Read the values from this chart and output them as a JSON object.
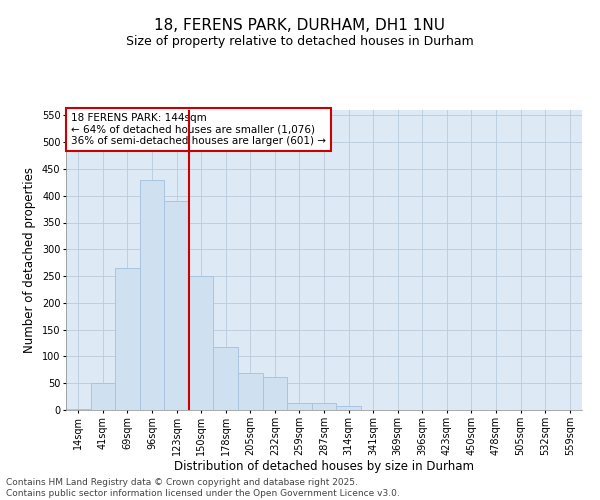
{
  "title": "18, FERENS PARK, DURHAM, DH1 1NU",
  "subtitle": "Size of property relative to detached houses in Durham",
  "xlabel": "Distribution of detached houses by size in Durham",
  "ylabel": "Number of detached properties",
  "categories": [
    "14sqm",
    "41sqm",
    "69sqm",
    "96sqm",
    "123sqm",
    "150sqm",
    "178sqm",
    "205sqm",
    "232sqm",
    "259sqm",
    "287sqm",
    "314sqm",
    "341sqm",
    "369sqm",
    "396sqm",
    "423sqm",
    "450sqm",
    "478sqm",
    "505sqm",
    "532sqm",
    "559sqm"
  ],
  "values": [
    2,
    50,
    265,
    430,
    390,
    250,
    118,
    70,
    62,
    14,
    14,
    8,
    0,
    0,
    0,
    0,
    0,
    0,
    0,
    0,
    0
  ],
  "bar_color": "#cfe0f0",
  "bar_edge_color": "#aac4df",
  "vline_x_index": 5,
  "vline_color": "#cc0000",
  "annotation_title": "18 FERENS PARK: 144sqm",
  "annotation_line1": "← 64% of detached houses are smaller (1,076)",
  "annotation_line2": "36% of semi-detached houses are larger (601) →",
  "annotation_box_color": "#ffffff",
  "annotation_box_edge_color": "#cc0000",
  "ylim": [
    0,
    560
  ],
  "yticks": [
    0,
    50,
    100,
    150,
    200,
    250,
    300,
    350,
    400,
    450,
    500,
    550
  ],
  "grid_color": "#b8ccdc",
  "background_color": "#ddeaf5",
  "footer_line1": "Contains HM Land Registry data © Crown copyright and database right 2025.",
  "footer_line2": "Contains public sector information licensed under the Open Government Licence v3.0.",
  "title_fontsize": 11,
  "subtitle_fontsize": 9,
  "axis_label_fontsize": 8.5,
  "tick_fontsize": 7,
  "annotation_fontsize": 7.5,
  "footer_fontsize": 6.5
}
